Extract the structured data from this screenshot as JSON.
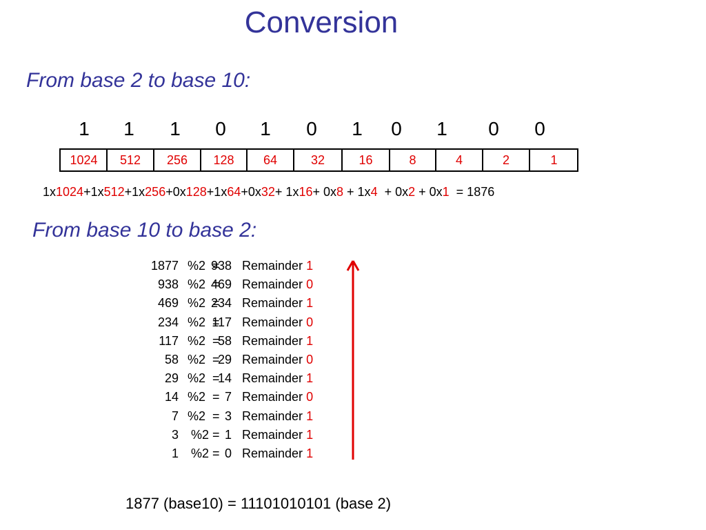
{
  "title": "Conversion",
  "section1": {
    "heading": "From base 2 to base 10:",
    "bits": [
      "1",
      "1",
      "1",
      "0",
      "1",
      "0",
      "1",
      "0",
      "1",
      "0",
      "0"
    ],
    "weights": [
      "1024",
      "512",
      "256",
      "128",
      "64",
      "32",
      "16",
      "8",
      "4",
      "2",
      "1"
    ],
    "sum_terms": [
      {
        "text": "1x",
        "red": false
      },
      {
        "text": "1024",
        "red": true
      },
      {
        "text": "+1x",
        "red": false
      },
      {
        "text": "512",
        "red": true
      },
      {
        "text": "+1x",
        "red": false
      },
      {
        "text": "256",
        "red": true
      },
      {
        "text": "+0x",
        "red": false
      },
      {
        "text": "128",
        "red": true
      },
      {
        "text": "+1x",
        "red": false
      },
      {
        "text": "64",
        "red": true
      },
      {
        "text": "+0x",
        "red": false
      },
      {
        "text": "32",
        "red": true
      },
      {
        "text": "+ 1x",
        "red": false
      },
      {
        "text": "16",
        "red": true
      },
      {
        "text": "+ 0x",
        "red": false
      },
      {
        "text": "8",
        "red": true
      },
      {
        "text": " + 1x",
        "red": false
      },
      {
        "text": "4",
        "red": true
      },
      {
        "text": "  + 0x",
        "red": false
      },
      {
        "text": "2",
        "red": true
      },
      {
        "text": " + 0x",
        "red": false
      },
      {
        "text": "1",
        "red": true
      },
      {
        "text": "  = 1876",
        "red": false
      }
    ]
  },
  "section2": {
    "heading": "From base 10 to base 2:",
    "remainder_label": "Remainder",
    "rows": [
      {
        "n": "1877",
        "op": "%2  =",
        "q": "938",
        "r": "1"
      },
      {
        "n": "938",
        "op": "%2  =",
        "q": "469",
        "r": "0"
      },
      {
        "n": "469",
        "op": "%2  =",
        "q": "234",
        "r": "1"
      },
      {
        "n": "234",
        "op": "%2  =",
        "q": "117",
        "r": "0"
      },
      {
        "n": "117",
        "op": "%2  =",
        "q": "58",
        "r": "1"
      },
      {
        "n": "58",
        "op": "%2  =",
        "q": "29",
        "r": "0"
      },
      {
        "n": "29",
        "op": "%2  =",
        "q": "14",
        "r": "1"
      },
      {
        "n": "14",
        "op": "%2  =",
        "q": "7",
        "r": "0"
      },
      {
        "n": "7",
        "op": "%2  =",
        "q": "3",
        "r": "1"
      },
      {
        "n": "3",
        "op": " %2 =",
        "q": "1",
        "r": "1"
      },
      {
        "n": "1",
        "op": " %2 =",
        "q": "0",
        "r": "1"
      }
    ],
    "result": "1877 (base10) = 11101010101 (base 2)"
  },
  "colors": {
    "heading": "#333399",
    "highlight": "#e00000",
    "text": "#000000"
  }
}
